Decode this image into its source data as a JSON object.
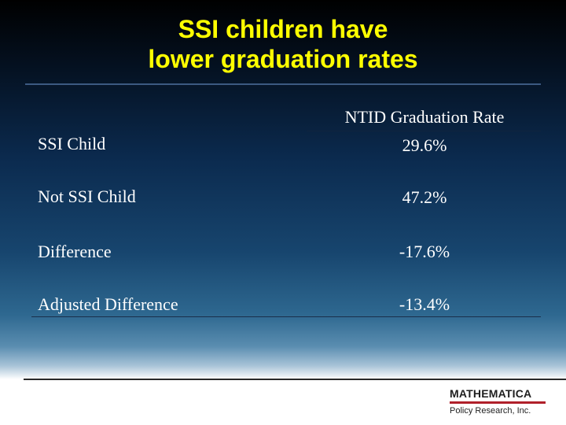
{
  "slide": {
    "title_line1": "SSI children have",
    "title_line2": "lower graduation rates"
  },
  "table": {
    "column_header": "NTID Graduation Rate",
    "rows": [
      {
        "label": "SSI Child",
        "value": "29.6%"
      },
      {
        "label": "Not SSI Child",
        "value": "47.2%"
      },
      {
        "label": "Difference",
        "value": "-17.6%"
      },
      {
        "label": "Adjusted Difference",
        "value": "-13.4%"
      }
    ]
  },
  "logo": {
    "name": "MATHEMATICA",
    "tagline": "Policy Research, Inc."
  },
  "colors": {
    "title": "#ffff00",
    "text": "#ffffff",
    "logo_bar": "#b0202a"
  }
}
